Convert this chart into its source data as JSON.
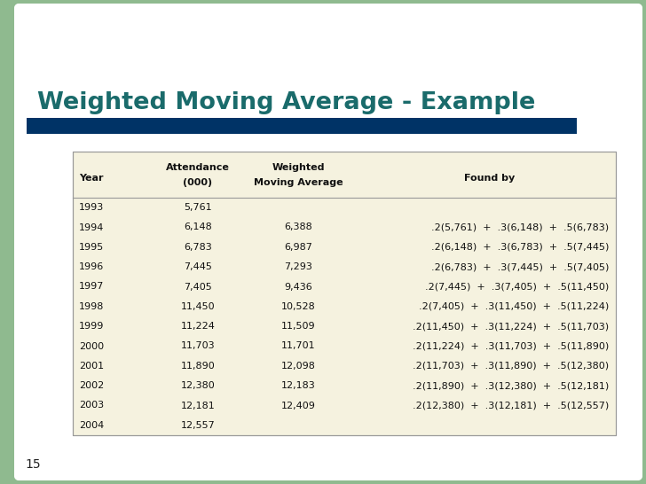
{
  "title": "Weighted Moving Average - Example",
  "title_color": "#1a6b6b",
  "bg_color": "#8fba8f",
  "bar_color": "#003366",
  "table_bg": "#f5f2df",
  "page_num": "15",
  "rows": [
    [
      "1993",
      "5,761",
      "",
      ""
    ],
    [
      "1994",
      "6,148",
      "6,388",
      ".2(5,761)  +  .3(6,148)  +  .5(6,783)"
    ],
    [
      "1995",
      "6,783",
      "6,987",
      ".2(6,148)  +  .3(6,783)  +  .5(7,445)"
    ],
    [
      "1996",
      "7,445",
      "7,293",
      ".2(6,783)  +  .3(7,445)  +  .5(7,405)"
    ],
    [
      "1997",
      "7,405",
      "9,436",
      ".2(7,445)  +  .3(7,405)  +  .5(11,450)"
    ],
    [
      "1998",
      "11,450",
      "10,528",
      ".2(7,405)  +  .3(11,450)  +  .5(11,224)"
    ],
    [
      "1999",
      "11,224",
      "11,509",
      ".2(11,450)  +  .3(11,224)  +  .5(11,703)"
    ],
    [
      "2000",
      "11,703",
      "11,701",
      ".2(11,224)  +  .3(11,703)  +  .5(11,890)"
    ],
    [
      "2001",
      "11,890",
      "12,098",
      ".2(11,703)  +  .3(11,890)  +  .5(12,380)"
    ],
    [
      "2002",
      "12,380",
      "12,183",
      ".2(11,890)  +  .3(12,380)  +  .5(12,181)"
    ],
    [
      "2003",
      "12,181",
      "12,409",
      ".2(12,380)  +  .3(12,181)  +  .5(12,557)"
    ],
    [
      "2004",
      "12,557",
      "",
      ""
    ]
  ]
}
